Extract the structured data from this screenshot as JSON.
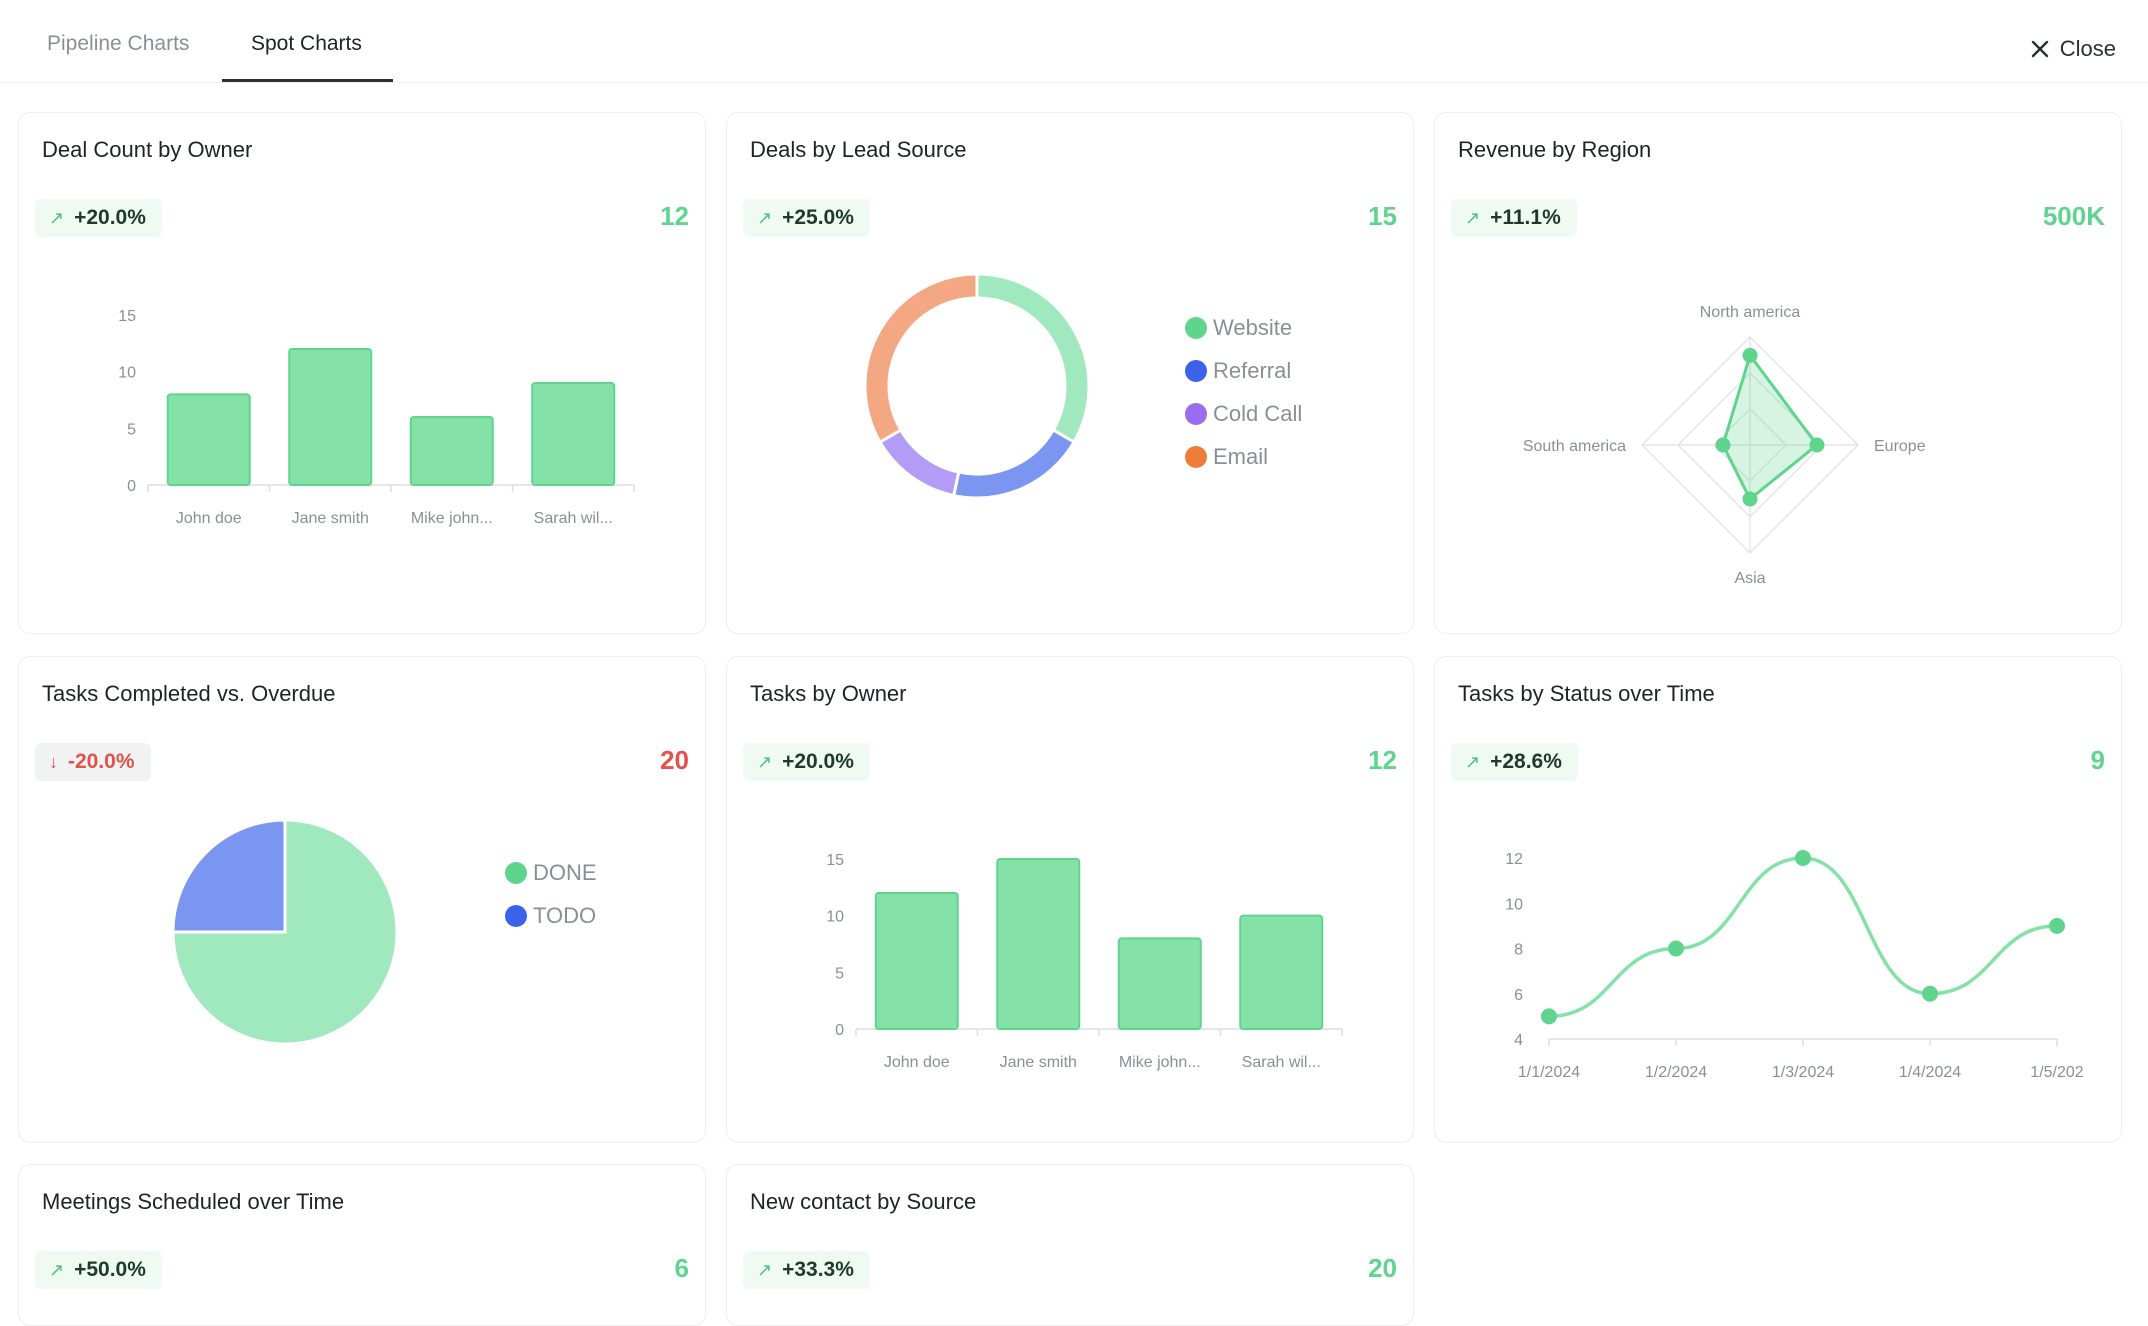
{
  "tabs": [
    {
      "label": "Pipeline Charts"
    },
    {
      "label": "Spot Charts"
    }
  ],
  "close_label": "Close",
  "colors": {
    "green": "#5fd48d",
    "red": "#e0524a",
    "bar": "#84e2a8",
    "blue": "#3c62ea",
    "purple": "#9b6bf0",
    "orange": "#f07c3a"
  },
  "cards": [
    {
      "title": "Deal Count by Owner",
      "change": "+20.0%",
      "value": "12"
    },
    {
      "title": "Deals by Lead Source",
      "change": "+25.0%",
      "value": "15"
    },
    {
      "title": "Revenue by Region",
      "change": "+11.1%",
      "value": "500K"
    },
    {
      "title": "Tasks Completed vs. Overdue",
      "change": "-20.0%",
      "value": "20"
    },
    {
      "title": "Tasks by Owner",
      "change": "+20.0%",
      "value": "12"
    },
    {
      "title": "Tasks by Status over Time",
      "change": "+28.6%",
      "value": "9"
    },
    {
      "title": "Meetings Scheduled over Time",
      "change": "+50.0%",
      "value": "6"
    },
    {
      "title": "New contact by Source",
      "change": "+33.3%",
      "value": "20"
    }
  ],
  "chart_data": [
    {
      "type": "bar",
      "categories": [
        "John doe",
        "Jane smith",
        "Mike john...",
        "Sarah wil..."
      ],
      "values": [
        8,
        12,
        6,
        9
      ],
      "yticks": [
        0,
        5,
        10,
        15
      ],
      "ylim": [
        0,
        15
      ]
    },
    {
      "type": "pie",
      "donut": true,
      "labels": [
        "Website",
        "Referral",
        "Cold Call",
        "Email"
      ],
      "values": [
        5,
        3,
        2,
        5
      ],
      "legend_colors": [
        "#5fd48d",
        "#3c62ea",
        "#9b6bf0",
        "#f07c3a"
      ],
      "slice_colors": [
        "#a0e8bd",
        "#7b96f0",
        "#b39cf5",
        "#f3a883"
      ]
    },
    {
      "type": "radar",
      "axes": [
        "North america",
        "Europe",
        "Asia",
        "South america"
      ],
      "values": [
        0.83,
        0.62,
        0.5,
        0.25
      ],
      "grid_levels": 3
    },
    {
      "type": "pie",
      "labels": [
        "DONE",
        "TODO"
      ],
      "values": [
        15,
        5
      ],
      "legend_colors": [
        "#5fd48d",
        "#3c62ea"
      ],
      "slice_colors": [
        "#a0e8bd",
        "#7b96f0"
      ]
    },
    {
      "type": "bar",
      "categories": [
        "John doe",
        "Jane smith",
        "Mike john...",
        "Sarah wil..."
      ],
      "values": [
        12,
        15,
        8,
        10
      ],
      "yticks": [
        0,
        5,
        10,
        15
      ],
      "ylim": [
        0,
        15
      ]
    },
    {
      "type": "line",
      "x": [
        "1/1/2024",
        "1/2/2024",
        "1/3/2024",
        "1/4/2024",
        "1/5/202"
      ],
      "values": [
        5,
        8,
        12,
        6,
        9
      ],
      "yticks": [
        4,
        6,
        8,
        10,
        12
      ],
      "ylim": [
        4,
        12
      ]
    }
  ]
}
